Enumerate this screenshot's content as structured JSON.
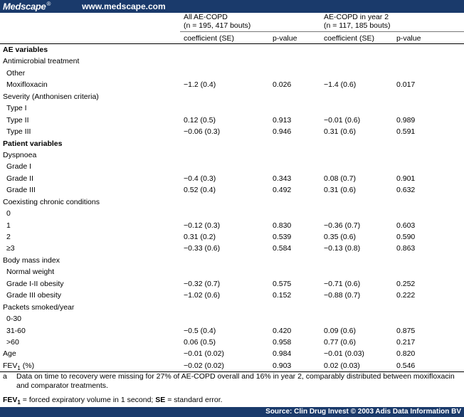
{
  "topbar": {
    "brand": "Medscape",
    "reg": "®",
    "site": "www.medscape.com"
  },
  "header": {
    "group1_title": "All AE-COPD",
    "group1_n": "(n = 195, 417 bouts)",
    "group2_title": "AE-COPD in year 2",
    "group2_n": "(n = 117, 185 bouts)",
    "col_coef1": "coefficient (SE)",
    "col_p1": "p-value",
    "col_coef2": "coefficient (SE)",
    "col_p2": "p-value"
  },
  "rows": [
    {
      "label": "AE variables",
      "type": "section",
      "c1": "",
      "p1": "",
      "c2": "",
      "p2": ""
    },
    {
      "label": "Antimicrobial treatment",
      "type": "group",
      "c1": "",
      "p1": "",
      "c2": "",
      "p2": ""
    },
    {
      "label": "Other",
      "type": "sub",
      "c1": "",
      "p1": "",
      "c2": "",
      "p2": ""
    },
    {
      "label": "Moxifloxacin",
      "type": "sub",
      "c1": "−1.2 (0.4)",
      "p1": "0.026",
      "c2": "−1.4 (0.6)",
      "p2": "0.017"
    },
    {
      "label": "Severity (Anthonisen criteria)",
      "type": "group",
      "c1": "",
      "p1": "",
      "c2": "",
      "p2": ""
    },
    {
      "label": "Type I",
      "type": "sub",
      "c1": "",
      "p1": "",
      "c2": "",
      "p2": ""
    },
    {
      "label": "Type II",
      "type": "sub",
      "c1": "0.12 (0.5)",
      "p1": "0.913",
      "c2": "−0.01 (0.6)",
      "p2": "0.989"
    },
    {
      "label": "Type III",
      "type": "sub",
      "c1": "−0.06 (0.3)",
      "p1": "0.946",
      "c2": "0.31 (0.6)",
      "p2": "0.591"
    },
    {
      "label": "Patient variables",
      "type": "section",
      "c1": "",
      "p1": "",
      "c2": "",
      "p2": ""
    },
    {
      "label": "Dyspnoea",
      "type": "group",
      "c1": "",
      "p1": "",
      "c2": "",
      "p2": ""
    },
    {
      "label": "Grade I",
      "type": "sub",
      "c1": "",
      "p1": "",
      "c2": "",
      "p2": ""
    },
    {
      "label": "Grade II",
      "type": "sub",
      "c1": "−0.4 (0.3)",
      "p1": "0.343",
      "c2": "0.08 (0.7)",
      "p2": "0.901"
    },
    {
      "label": "Grade III",
      "type": "sub",
      "c1": "0.52 (0.4)",
      "p1": "0.492",
      "c2": "0.31 (0.6)",
      "p2": "0.632"
    },
    {
      "label": "Coexisting chronic conditions",
      "type": "group",
      "c1": "",
      "p1": "",
      "c2": "",
      "p2": ""
    },
    {
      "label": "0",
      "type": "sub",
      "c1": "",
      "p1": "",
      "c2": "",
      "p2": ""
    },
    {
      "label": "1",
      "type": "sub",
      "c1": "−0.12 (0.3)",
      "p1": "0.830",
      "c2": "−0.36 (0.7)",
      "p2": "0.603"
    },
    {
      "label": "2",
      "type": "sub",
      "c1": "0.31 (0.2)",
      "p1": "0.539",
      "c2": "0.35 (0.6)",
      "p2": "0.590"
    },
    {
      "label": "≥3",
      "type": "sub",
      "c1": "−0.33 (0.6)",
      "p1": "0.584",
      "c2": "−0.13 (0.8)",
      "p2": "0.863"
    },
    {
      "label": "Body mass index",
      "type": "group",
      "c1": "",
      "p1": "",
      "c2": "",
      "p2": ""
    },
    {
      "label": "Normal weight",
      "type": "sub",
      "c1": "",
      "p1": "",
      "c2": "",
      "p2": ""
    },
    {
      "label": "Grade I-II obesity",
      "type": "sub",
      "c1": "−0.32 (0.7)",
      "p1": "0.575",
      "c2": "−0.71 (0.6)",
      "p2": "0.252"
    },
    {
      "label": "Grade III obesity",
      "type": "sub",
      "c1": "−1.02 (0.6)",
      "p1": "0.152",
      "c2": "−0.88 (0.7)",
      "p2": "0.222"
    },
    {
      "label": "Packets smoked/year",
      "type": "group",
      "c1": "",
      "p1": "",
      "c2": "",
      "p2": ""
    },
    {
      "label": "0-30",
      "type": "sub",
      "c1": "",
      "p1": "",
      "c2": "",
      "p2": ""
    },
    {
      "label": "31-60",
      "type": "sub",
      "c1": "−0.5 (0.4)",
      "p1": "0.420",
      "c2": "0.09 (0.6)",
      "p2": "0.875"
    },
    {
      "label": ">60",
      "type": "sub",
      "c1": "0.06 (0.5)",
      "p1": "0.958",
      "c2": "0.77 (0.6)",
      "p2": "0.217"
    },
    {
      "label": "Age",
      "type": "group",
      "c1": "−0.01 (0.02)",
      "p1": "0.984",
      "c2": "−0.01 (0.03)",
      "p2": "0.820"
    },
    {
      "label": "FEV",
      "label_sub": "1",
      "label_suffix": " (%)",
      "type": "group",
      "c1": "−0.02 (0.02)",
      "p1": "0.903",
      "c2": "0.02 (0.03)",
      "p2": "0.546"
    }
  ],
  "footnotes": {
    "a_letter": "a",
    "a_text": "Data on time to recovery were missing for 27% of AE-COPD overall and 16% in year 2, comparably distributed between moxifloxacin and comparator treatments.",
    "abbr_fev": "FEV",
    "abbr_fev_sub": "1",
    "abbr_fev_text": " = forced expiratory volume in 1 second; ",
    "abbr_se": "SE",
    "abbr_se_text": " = standard error."
  },
  "source": "Source: Clin Drug Invest © 2003 Adis Data Information BV"
}
